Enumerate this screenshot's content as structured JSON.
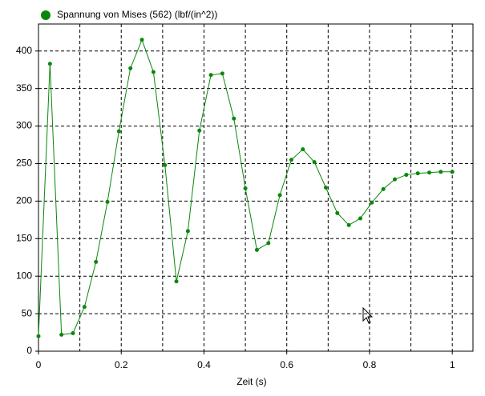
{
  "chart_data": {
    "type": "line",
    "legend_label": "Spannung von Mises (562) (lbf/(in^2))",
    "x_label": "Zeit (s)",
    "x": [
      0,
      0.0278,
      0.0556,
      0.0833,
      0.1111,
      0.1389,
      0.1667,
      0.1944,
      0.2222,
      0.25,
      0.2778,
      0.3056,
      0.3333,
      0.3611,
      0.3889,
      0.4167,
      0.4444,
      0.4722,
      0.5,
      0.5278,
      0.5556,
      0.5833,
      0.6111,
      0.6389,
      0.6667,
      0.6944,
      0.7222,
      0.75,
      0.7778,
      0.8056,
      0.8333,
      0.8611,
      0.8889,
      0.9167,
      0.9444,
      0.9722,
      1
    ],
    "series": [
      {
        "name": "Spannung von Mises (562) (lbf/(in^2))",
        "color": "#0a870a",
        "values": [
          20,
          383,
          22,
          24,
          59,
          119,
          199,
          293,
          377,
          415,
          372,
          248,
          93,
          160,
          294,
          368,
          370,
          310,
          217,
          135,
          144,
          208,
          255,
          269,
          252,
          218,
          184,
          168,
          177,
          198,
          216,
          229,
          235,
          237,
          238,
          239,
          239
        ]
      }
    ],
    "xlim": [
      0,
      1.05
    ],
    "ylim": [
      0,
      436
    ],
    "xticks": [
      0,
      0.2,
      0.4,
      0.6,
      0.8,
      1
    ],
    "xgrid_extra": [
      0.1,
      0.3,
      0.5,
      0.7,
      0.9
    ],
    "yticks": [
      0,
      50,
      100,
      150,
      200,
      250,
      300,
      350,
      400
    ],
    "grid": true
  }
}
